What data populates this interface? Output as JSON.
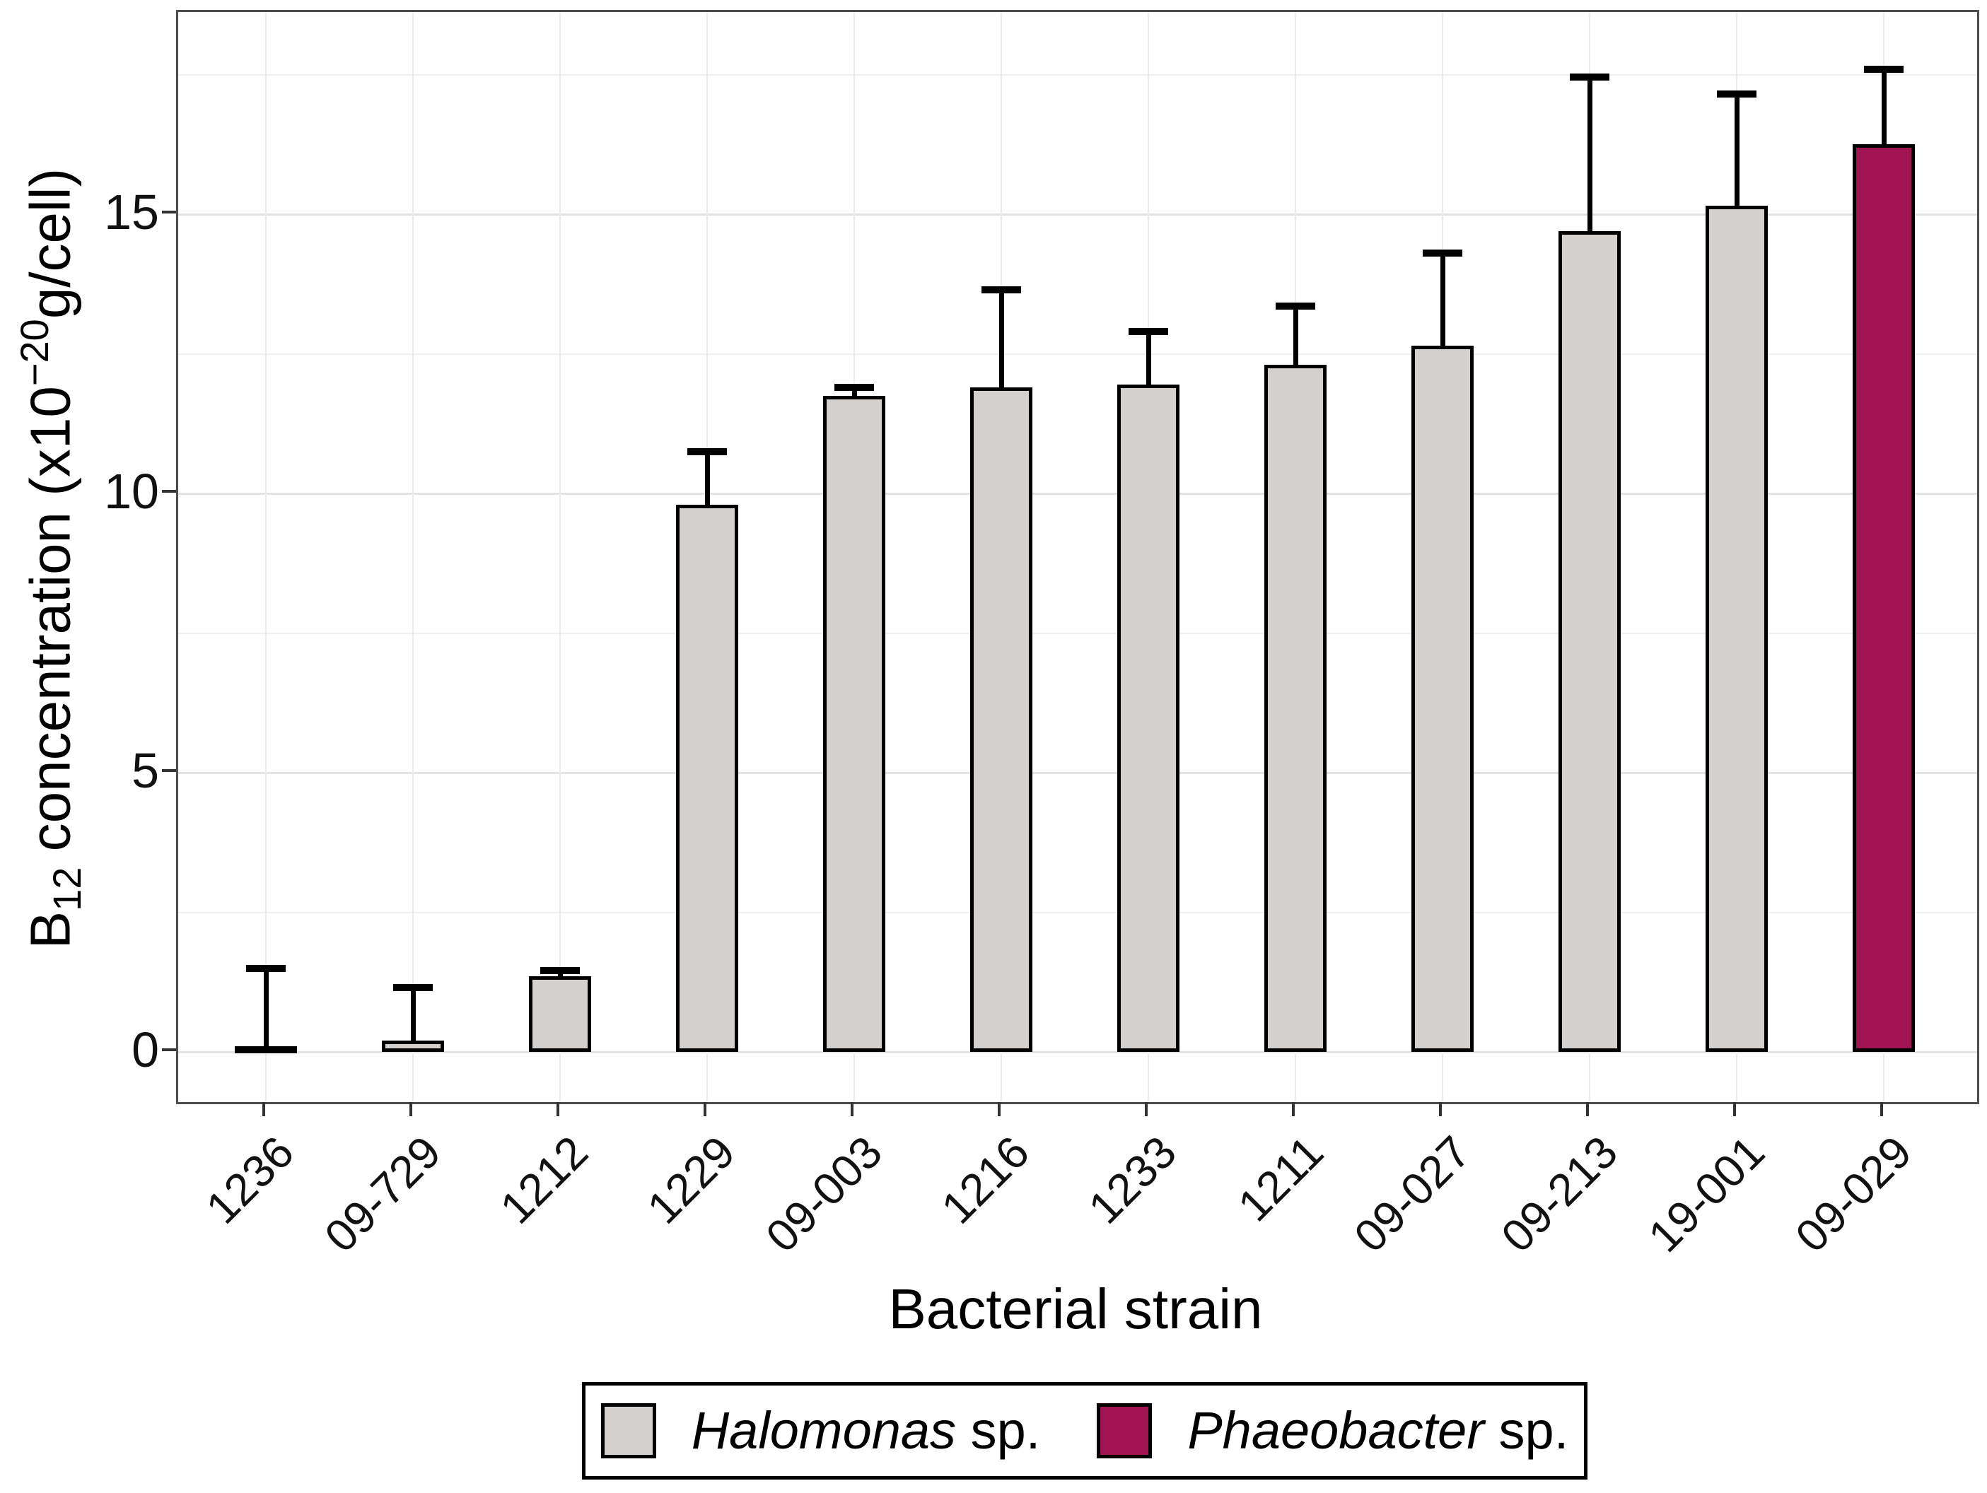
{
  "figure": {
    "background": "#ffffff",
    "panel_border_color": "#4d4d4d"
  },
  "axes": {
    "y": {
      "title_parts": {
        "base": "B",
        "sub": "12",
        "mid": " concentration (x10",
        "sup": "−20",
        "end": "g/cell)"
      },
      "ticks": [
        "0",
        "5",
        "10",
        "15"
      ],
      "tick_values": [
        0,
        5,
        10,
        15
      ]
    },
    "x": {
      "title": "Bacterial strain"
    }
  },
  "legend": {
    "position": "bottom",
    "items": [
      {
        "genus": "Halomonas",
        "rest": " sp.",
        "color": "#d4d0ce",
        "group": "halomonas"
      },
      {
        "genus": "Phaeobacter",
        "rest": " sp.",
        "color": "#a21351",
        "group": "phaeobacter"
      }
    ]
  },
  "chart_data": {
    "type": "bar",
    "title": "",
    "xlabel": "Bacterial strain",
    "ylabel": "B12 concentration (x10^-20 g/cell)",
    "categories": [
      "1236",
      "09-729",
      "1212",
      "1229",
      "09-003",
      "1216",
      "1233",
      "1211",
      "09-027",
      "09-213",
      "19-001",
      "09-029"
    ],
    "series": [
      {
        "name": "B12 concentration (x10^-20 g/cell)",
        "values": [
          0.1,
          0.2,
          1.35,
          9.8,
          11.75,
          11.9,
          11.95,
          12.3,
          12.65,
          14.7,
          15.15,
          16.25
        ]
      }
    ],
    "error_upper": [
      1.5,
      1.15,
      1.45,
      10.75,
      11.9,
      13.65,
      12.9,
      13.35,
      14.3,
      17.45,
      17.15,
      17.6
    ],
    "groups": [
      "halomonas",
      "halomonas",
      "halomonas",
      "halomonas",
      "halomonas",
      "halomonas",
      "halomonas",
      "halomonas",
      "halomonas",
      "halomonas",
      "halomonas",
      "phaeobacter"
    ],
    "colors": {
      "halomonas": "#d4d0ce",
      "phaeobacter": "#a21351"
    },
    "bar_outline_color": "#000000",
    "ylim": [
      0,
      18.6
    ],
    "yticks": [
      0,
      5,
      10,
      15
    ],
    "yticks_minor": [
      2.5,
      7.5,
      12.5,
      17.5
    ],
    "grid": true,
    "legend_position": "bottom",
    "x_tick_label_angle": 45
  }
}
